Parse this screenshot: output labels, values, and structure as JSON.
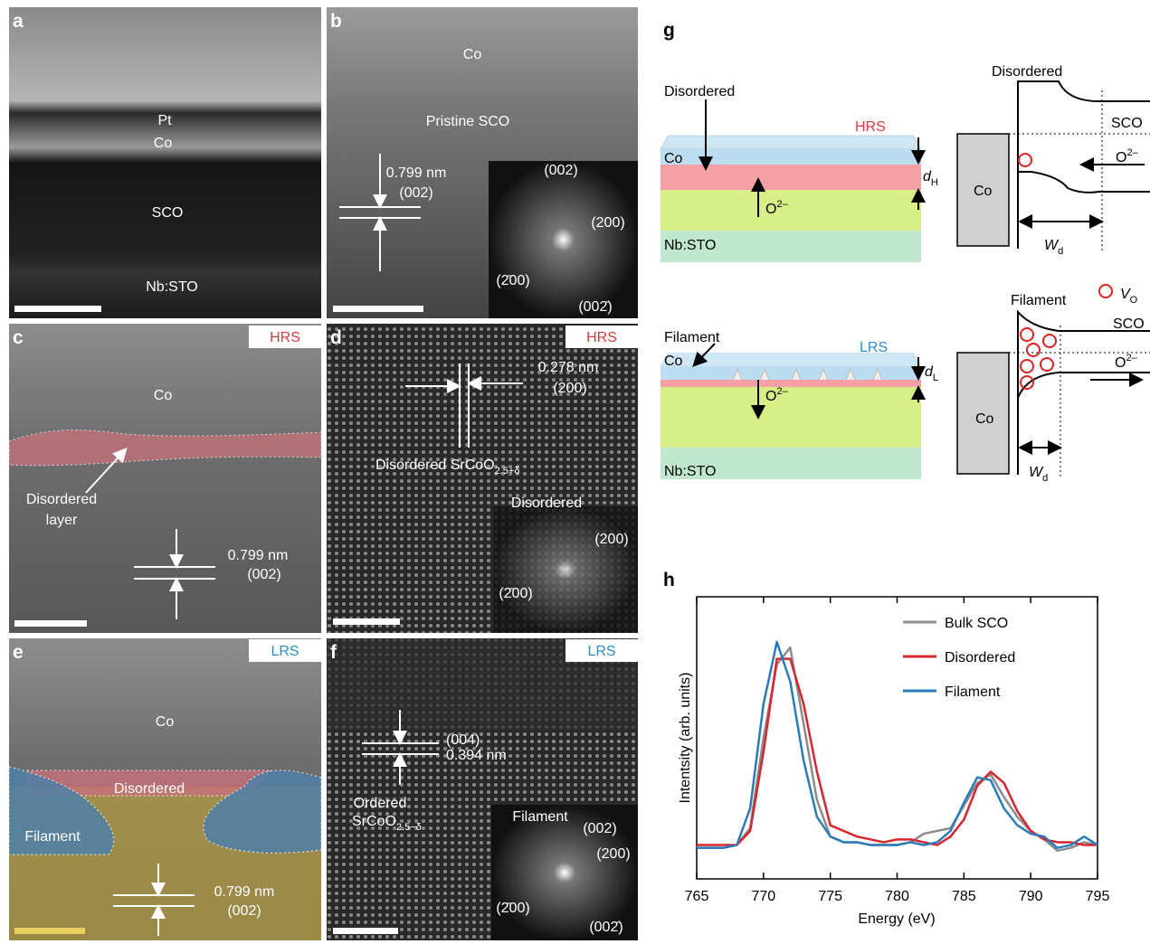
{
  "panels": {
    "a": {
      "label": "a",
      "layers": [
        "Pt",
        "Co",
        "SCO",
        "Nb:STO"
      ]
    },
    "b": {
      "label": "b",
      "top": "Co",
      "layer": "Pristine SCO",
      "spacing": "0.799 nm",
      "plane": "(002)",
      "fft": [
        "(002)",
        "(200)",
        "(2̄00)",
        "(002̄)"
      ]
    },
    "c": {
      "label": "c",
      "state": "HRS",
      "top": "Co",
      "layer": [
        "Disordered",
        "layer"
      ],
      "spacing": "0.799 nm",
      "plane": "(002)"
    },
    "d": {
      "label": "d",
      "state": "HRS",
      "spacing": "0.278 nm",
      "plane": "(200)",
      "phase": "Disordered SrCoO",
      "phase_sub": "2.5+δ",
      "fft_title": "Disordered",
      "fft": [
        "(200)",
        "(2̄00)"
      ]
    },
    "e": {
      "label": "e",
      "state": "LRS",
      "top": "Co",
      "layer": "Disordered",
      "filament": "Filament",
      "spacing": "0.799 nm",
      "plane": "(002)"
    },
    "f": {
      "label": "f",
      "state": "LRS",
      "plane": "(004)",
      "spacing": "0.394 nm",
      "phase": [
        "Ordered",
        "SrCoO"
      ],
      "phase_sub": "2.5−δ",
      "fft_title": "Filament",
      "fft": [
        "(002)",
        "(200)",
        "(2̄00)",
        "(002̄)"
      ]
    },
    "g": {
      "label": "g",
      "top": {
        "annotation": "Disordered",
        "state": "HRS",
        "co": "Co",
        "d": "d",
        "d_sub": "H",
        "ion": "O",
        "ion_sup": "2–",
        "substrate": "Nb:STO",
        "band_title": "Disordered",
        "sco": "SCO",
        "band_co": "Co",
        "band_ion": "O",
        "band_ion_sup": "2–",
        "w": "W",
        "w_sub": "d"
      },
      "legend": {
        "v": "V",
        "v_sub": "O"
      },
      "bottom": {
        "annotation": "Filament",
        "state": "LRS",
        "co": "Co",
        "d": "d",
        "d_sub": "L",
        "ion": "O",
        "ion_sup": "2–",
        "substrate": "Nb:STO",
        "band_title": "Filament",
        "sco": "SCO",
        "band_co": "Co",
        "band_ion": "O",
        "band_ion_sup": "2–",
        "w": "W",
        "w_sub": "d"
      }
    },
    "h": {
      "label": "h"
    }
  },
  "chart_data": {
    "type": "line",
    "xlabel": "Energy (eV)",
    "ylabel": "Intentsity (arb. units)",
    "x": [
      765,
      766,
      767,
      768,
      769,
      770,
      771,
      772,
      773,
      774,
      775,
      776,
      777,
      778,
      779,
      780,
      781,
      782,
      783,
      784,
      785,
      786,
      787,
      788,
      789,
      790,
      791,
      792,
      793,
      794,
      795
    ],
    "xlim": [
      765,
      795
    ],
    "xticks": [
      765,
      770,
      775,
      780,
      785,
      790,
      795
    ],
    "ylim": [
      0,
      1
    ],
    "series": [
      {
        "name": "Bulk SCO",
        "color": "#8c8c8c",
        "values": [
          0.11,
          0.11,
          0.11,
          0.12,
          0.18,
          0.5,
          0.76,
          0.82,
          0.55,
          0.28,
          0.15,
          0.13,
          0.13,
          0.12,
          0.12,
          0.12,
          0.13,
          0.16,
          0.17,
          0.18,
          0.26,
          0.34,
          0.37,
          0.29,
          0.22,
          0.17,
          0.14,
          0.1,
          0.11,
          0.13,
          0.12
        ]
      },
      {
        "name": "Disordered",
        "color": "#d7262e",
        "values": [
          0.12,
          0.12,
          0.12,
          0.12,
          0.17,
          0.45,
          0.78,
          0.78,
          0.62,
          0.38,
          0.19,
          0.17,
          0.15,
          0.14,
          0.13,
          0.14,
          0.14,
          0.13,
          0.12,
          0.15,
          0.21,
          0.33,
          0.38,
          0.34,
          0.24,
          0.17,
          0.14,
          0.13,
          0.13,
          0.12,
          0.12
        ]
      },
      {
        "name": "Filament",
        "color": "#2b7bb9",
        "values": [
          0.11,
          0.11,
          0.11,
          0.12,
          0.25,
          0.62,
          0.84,
          0.7,
          0.42,
          0.22,
          0.15,
          0.13,
          0.13,
          0.12,
          0.12,
          0.12,
          0.13,
          0.12,
          0.13,
          0.17,
          0.27,
          0.36,
          0.35,
          0.25,
          0.19,
          0.16,
          0.15,
          0.11,
          0.12,
          0.15,
          0.12
        ]
      }
    ]
  }
}
